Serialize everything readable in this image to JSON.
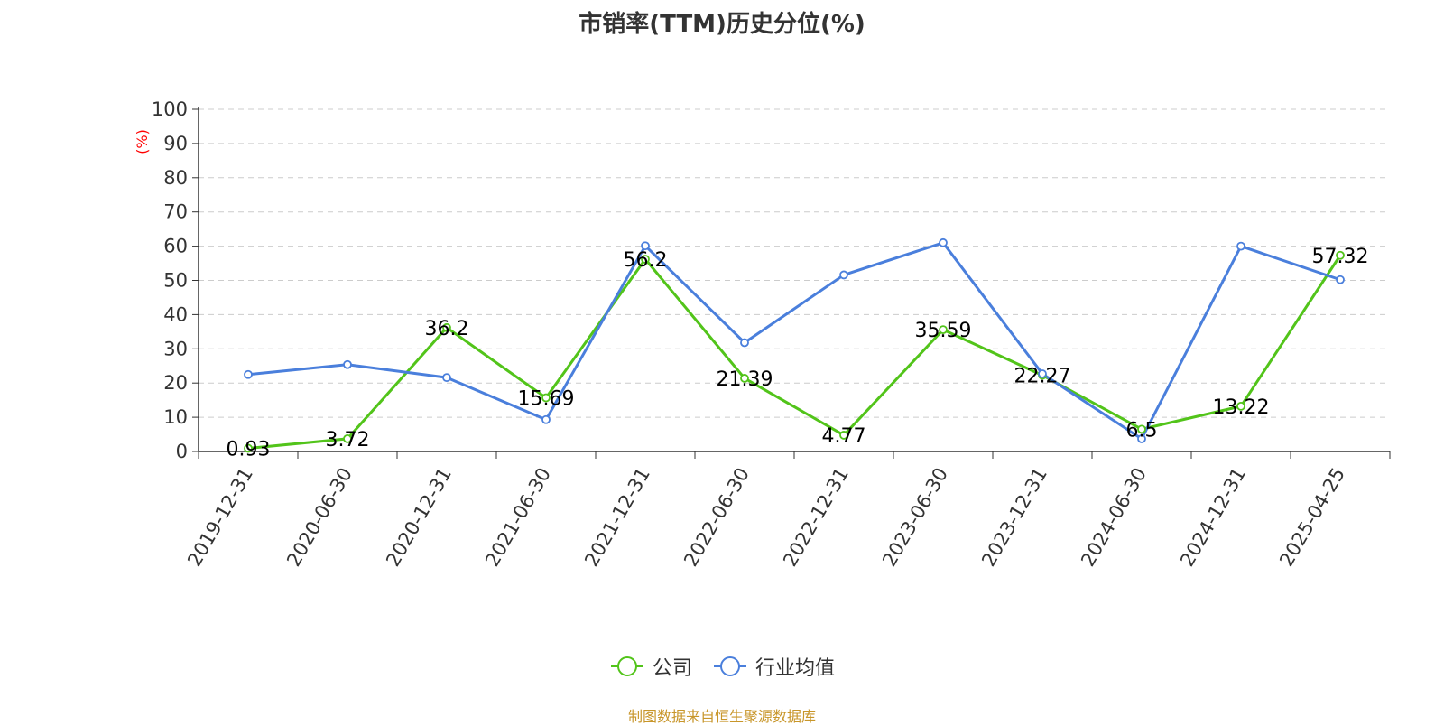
{
  "chart_data": {
    "type": "line",
    "title": "市销率(TTM)历史分位(%)",
    "ylabel": "(%)",
    "ylim": [
      0,
      100
    ],
    "yticks": [
      0,
      10,
      20,
      30,
      40,
      50,
      60,
      70,
      80,
      90,
      100
    ],
    "categories": [
      "2019-12-31",
      "2020-06-30",
      "2020-12-31",
      "2021-06-30",
      "2021-12-31",
      "2022-06-30",
      "2022-12-31",
      "2023-06-30",
      "2023-12-31",
      "2024-06-30",
      "2024-12-31",
      "2025-04-25"
    ],
    "grid": "horizontal-dashed",
    "legend_position": "bottom",
    "series": [
      {
        "name": "公司",
        "color": "#52c41a",
        "values": [
          0.93,
          3.72,
          36.2,
          15.69,
          56.2,
          21.39,
          4.77,
          35.59,
          22.27,
          6.5,
          13.22,
          57.32
        ],
        "labels": [
          "0.93",
          "3.72",
          "36.2",
          "15.69",
          "56.2",
          "21.39",
          "4.77",
          "35.59",
          "22.27",
          "6.5",
          "13.22",
          "57.32"
        ]
      },
      {
        "name": "行业均值",
        "color": "#4a7fdc",
        "values": [
          22.5,
          25.4,
          21.6,
          9.3,
          60.1,
          31.8,
          51.6,
          61.0,
          22.7,
          3.7,
          60.0,
          50.2
        ]
      }
    ]
  },
  "source": "制图数据来自恒生聚源数据库"
}
